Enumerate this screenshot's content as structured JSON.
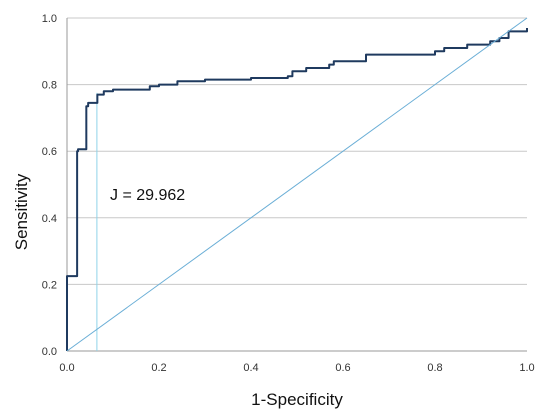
{
  "chart_data": {
    "type": "line",
    "title": "",
    "xlabel": "1-Specificity",
    "ylabel": "Sensitivity",
    "xlim": [
      0,
      1
    ],
    "ylim": [
      0,
      1
    ],
    "x_ticks": [
      "0.0",
      "0.2",
      "0.4",
      "0.6",
      "0.8",
      "1.0"
    ],
    "y_ticks": [
      "0.0",
      "0.2",
      "0.4",
      "0.6",
      "0.8",
      "1.0"
    ],
    "grid": "horizontal",
    "legend": "none",
    "annotation": "J = 29.962",
    "series": [
      {
        "color": "#1f3a5f",
        "style": "step",
        "x": [
          0.0,
          0.0,
          0.022,
          0.022,
          0.024,
          0.024,
          0.042,
          0.042,
          0.046,
          0.046,
          0.066,
          0.066,
          0.08,
          0.1,
          0.18,
          0.2,
          0.24,
          0.3,
          0.4,
          0.48,
          0.49,
          0.52,
          0.57,
          0.58,
          0.65,
          0.8,
          0.82,
          0.87,
          0.92,
          0.94,
          0.96,
          1.0
        ],
        "y": [
          0.0,
          0.225,
          0.232,
          0.6,
          0.605,
          0.606,
          0.607,
          0.735,
          0.74,
          0.745,
          0.75,
          0.77,
          0.78,
          0.785,
          0.795,
          0.8,
          0.81,
          0.815,
          0.82,
          0.825,
          0.84,
          0.85,
          0.86,
          0.87,
          0.89,
          0.9,
          0.91,
          0.92,
          0.93,
          0.94,
          0.96,
          0.97
        ]
      },
      {
        "color": "#6aaed6",
        "style": "line",
        "x": [
          0.0,
          1.0
        ],
        "y": [
          0.0,
          1.0
        ]
      }
    ],
    "cutoff_line": {
      "color": "#8fd3e8",
      "x": 0.065,
      "y_from": 0.0,
      "y_to": 0.775
    }
  },
  "colors": {
    "grid": "#c8c8c8",
    "axis": "#9a9a9a"
  }
}
